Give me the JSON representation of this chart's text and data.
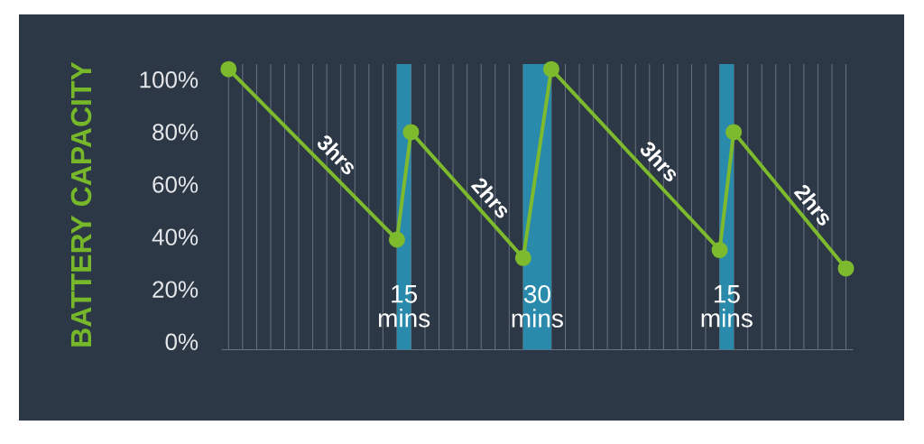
{
  "chart_data": {
    "type": "line",
    "ylabel": "BATTERY CAPACITY",
    "categories": [
      null,
      null,
      null,
      null,
      null,
      null,
      null,
      null,
      null,
      null,
      null,
      null,
      null,
      null,
      null,
      null,
      null,
      null,
      null,
      null,
      null,
      null,
      null,
      null,
      null,
      null,
      null,
      null,
      null,
      null,
      null,
      null,
      null,
      null,
      null,
      null,
      null,
      null,
      null,
      null,
      null,
      null,
      null,
      null,
      null
    ],
    "values": [
      104,
      null,
      null,
      null,
      null,
      null,
      null,
      null,
      null,
      null,
      null,
      null,
      39,
      80,
      null,
      null,
      null,
      null,
      null,
      null,
      null,
      32,
      null,
      104,
      null,
      null,
      null,
      null,
      null,
      null,
      null,
      null,
      null,
      null,
      null,
      35,
      80,
      null,
      null,
      null,
      null,
      null,
      null,
      null,
      28
    ],
    "color": "#7dba2d",
    "ylim": [
      -3,
      106
    ],
    "yticks": [
      {
        "value": 0,
        "label": "0%"
      },
      {
        "value": 20,
        "label": "20%"
      },
      {
        "value": 40,
        "label": "40%"
      },
      {
        "value": 60,
        "label": "60%"
      },
      {
        "value": 80,
        "label": "80%"
      },
      {
        "value": 100,
        "label": "100%"
      }
    ],
    "tick_labels": "y",
    "grid": "x",
    "marker": "circle",
    "line_style": "solid",
    "annotations": [
      "3hrs",
      "15 mins",
      "2hrs",
      "30 mins",
      "3hrs",
      "15 mins",
      "2hrs"
    ]
  }
}
